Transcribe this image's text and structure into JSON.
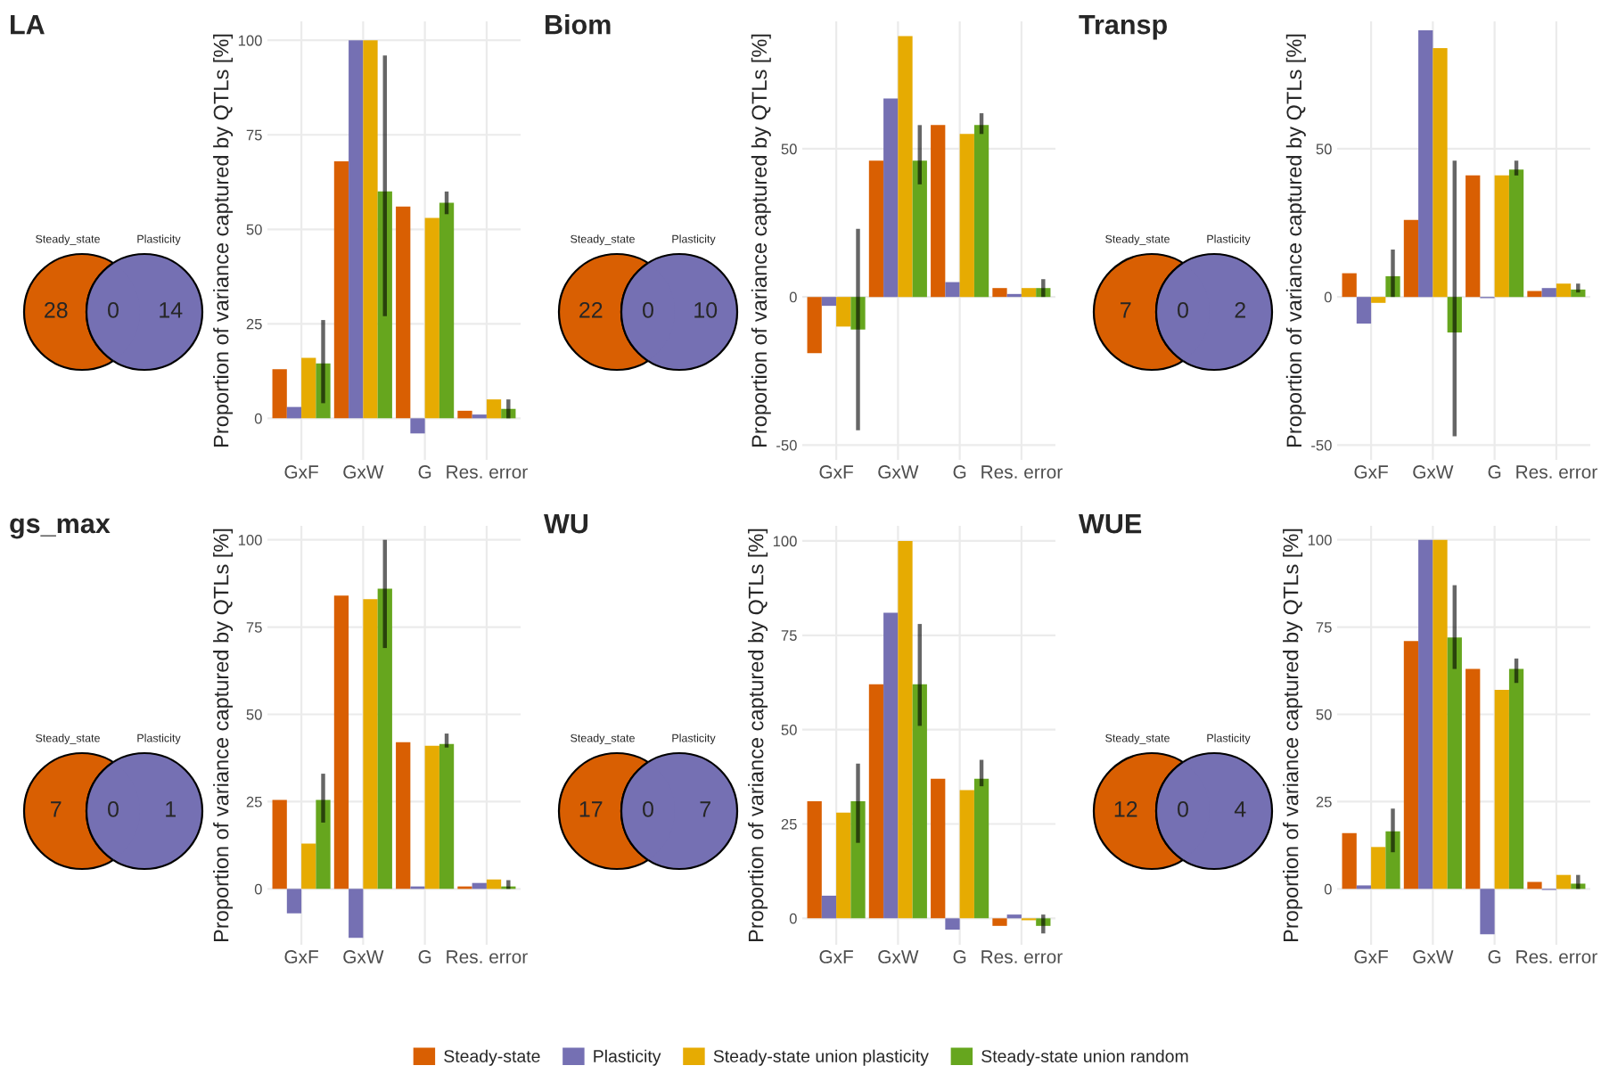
{
  "chart_data": [
    {
      "type": "other",
      "title": "LA",
      "categories": [
        "Steady_state",
        null,
        "Plasticity"
      ],
      "values": [
        28,
        0,
        14
      ],
      "data_labels": true,
      "colors": [
        "#d95f02",
        "#7570b3",
        "#7570b3"
      ]
    },
    {
      "type": "bar",
      "ylabel": "Proportion of variance captured by QTLs [%]",
      "categories": [
        "GxF",
        "GxW",
        "G",
        "Res. error"
      ],
      "ylim": [
        -11,
        105
      ],
      "yticks": [
        0,
        25,
        50,
        75,
        100
      ],
      "grid": true,
      "series": [
        {
          "color": "#d95f02",
          "values": [
            13,
            68,
            56,
            2
          ]
        },
        {
          "color": "#7570b3",
          "values": [
            3,
            100,
            -4,
            1
          ]
        },
        {
          "color": "#e6ab02",
          "values": [
            16,
            100,
            53,
            5
          ]
        },
        {
          "color": "#66a61e",
          "values": [
            14.5,
            60,
            57,
            2.5
          ],
          "errors": [
            [
              4,
              26
            ],
            [
              27,
              96
            ],
            [
              54,
              60
            ],
            [
              0,
              5
            ]
          ]
        }
      ]
    },
    {
      "type": "other",
      "title": "Biom",
      "categories": [
        "Steady_state",
        null,
        "Plasticity"
      ],
      "values": [
        22,
        0,
        10
      ],
      "data_labels": true,
      "colors": [
        "#d95f02",
        "#7570b3",
        "#7570b3"
      ]
    },
    {
      "type": "bar",
      "ylabel": "Proportion of variance captured by QTLs [%]",
      "categories": [
        "GxF",
        "GxW",
        "G",
        "Res. error"
      ],
      "ylim": [
        -55,
        93
      ],
      "yticks": [
        -50,
        0,
        50
      ],
      "grid": true,
      "series": [
        {
          "color": "#d95f02",
          "values": [
            -19,
            46,
            58,
            3
          ]
        },
        {
          "color": "#7570b3",
          "values": [
            -3,
            67,
            5,
            1
          ]
        },
        {
          "color": "#e6ab02",
          "values": [
            -10,
            88,
            55,
            3
          ]
        },
        {
          "color": "#66a61e",
          "values": [
            -11,
            46,
            58,
            3
          ],
          "errors": [
            [
              -45,
              23
            ],
            [
              38,
              58
            ],
            [
              55,
              62
            ],
            [
              0,
              6
            ]
          ]
        }
      ]
    },
    {
      "type": "other",
      "title": "Transp",
      "categories": [
        "Steady_state",
        null,
        "Plasticity"
      ],
      "values": [
        7,
        0,
        2
      ],
      "data_labels": true,
      "colors": [
        "#d95f02",
        "#7570b3",
        "#7570b3"
      ]
    },
    {
      "type": "bar",
      "ylabel": "Proportion of variance captured by QTLs [%]",
      "categories": [
        "GxF",
        "GxW",
        "G",
        "Res. error"
      ],
      "ylim": [
        -55,
        93
      ],
      "yticks": [
        -50,
        0,
        50
      ],
      "grid": true,
      "series": [
        {
          "color": "#d95f02",
          "values": [
            8,
            26,
            41,
            2
          ]
        },
        {
          "color": "#7570b3",
          "values": [
            -9,
            90,
            -0.4,
            3
          ]
        },
        {
          "color": "#e6ab02",
          "values": [
            -2,
            84,
            41,
            4.5
          ]
        },
        {
          "color": "#66a61e",
          "values": [
            7,
            -12,
            43,
            2.5
          ],
          "errors": [
            [
              0,
              16
            ],
            [
              -47,
              46
            ],
            [
              41,
              46
            ],
            [
              1.5,
              4.5
            ]
          ]
        }
      ]
    },
    {
      "type": "other",
      "title": "gs_max",
      "categories": [
        "Steady_state",
        null,
        "Plasticity"
      ],
      "values": [
        7,
        0,
        1
      ],
      "data_labels": true,
      "colors": [
        "#d95f02",
        "#7570b3",
        "#7570b3"
      ]
    },
    {
      "type": "bar",
      "ylabel": "Proportion of variance captured by QTLs [%]",
      "categories": [
        "GxF",
        "GxW",
        "G",
        "Res. error"
      ],
      "ylim": [
        -16,
        104
      ],
      "yticks": [
        0,
        25,
        50,
        75,
        100
      ],
      "grid": true,
      "series": [
        {
          "color": "#d95f02",
          "values": [
            25.5,
            84,
            42,
            0.7
          ]
        },
        {
          "color": "#7570b3",
          "values": [
            -7,
            -14,
            0.7,
            1.7
          ]
        },
        {
          "color": "#e6ab02",
          "values": [
            13,
            83,
            41,
            2.7
          ]
        },
        {
          "color": "#66a61e",
          "values": [
            25.5,
            86,
            41.5,
            0.7
          ],
          "errors": [
            [
              19,
              33
            ],
            [
              69,
              100
            ],
            [
              40.5,
              44.5
            ],
            [
              0,
              2.5
            ]
          ]
        }
      ]
    },
    {
      "type": "other",
      "title": "WU",
      "categories": [
        "Steady_state",
        null,
        "Plasticity"
      ],
      "values": [
        17,
        0,
        7
      ],
      "data_labels": true,
      "colors": [
        "#d95f02",
        "#7570b3",
        "#7570b3"
      ]
    },
    {
      "type": "bar",
      "ylabel": "Proportion of variance captured by QTLs [%]",
      "categories": [
        "GxF",
        "GxW",
        "G",
        "Res. error"
      ],
      "ylim": [
        -7,
        104
      ],
      "yticks": [
        0,
        25,
        50,
        75,
        100
      ],
      "grid": true,
      "series": [
        {
          "color": "#d95f02",
          "values": [
            31,
            62,
            37,
            -2
          ]
        },
        {
          "color": "#7570b3",
          "values": [
            6,
            81,
            -3,
            1
          ]
        },
        {
          "color": "#e6ab02",
          "values": [
            28,
            100,
            34,
            -0.5
          ]
        },
        {
          "color": "#66a61e",
          "values": [
            31,
            62,
            37,
            -2
          ],
          "errors": [
            [
              20,
              41
            ],
            [
              51,
              78
            ],
            [
              35,
              42
            ],
            [
              -4,
              1
            ]
          ]
        }
      ]
    },
    {
      "type": "other",
      "title": "WUE",
      "categories": [
        "Steady_state",
        null,
        "Plasticity"
      ],
      "values": [
        12,
        0,
        4
      ],
      "data_labels": true,
      "colors": [
        "#d95f02",
        "#7570b3",
        "#7570b3"
      ]
    },
    {
      "type": "bar",
      "ylabel": "Proportion of variance captured by QTLs [%]",
      "categories": [
        "GxF",
        "GxW",
        "G",
        "Res. error"
      ],
      "ylim": [
        -16,
        104
      ],
      "yticks": [
        0,
        25,
        50,
        75,
        100
      ],
      "grid": true,
      "legend": "bottom",
      "series": [
        {
          "name": "Steady-state",
          "color": "#d95f02",
          "values": [
            16,
            71,
            63,
            2
          ]
        },
        {
          "name": "Plasticity",
          "color": "#7570b3",
          "values": [
            1,
            100,
            -13,
            -0.3
          ]
        },
        {
          "name": "Steady-state union plasticity",
          "color": "#e6ab02",
          "values": [
            12,
            100,
            57,
            4
          ]
        },
        {
          "name": "Steady-state union random",
          "color": "#66a61e",
          "values": [
            16.5,
            72,
            63,
            1.5
          ],
          "errors": [
            [
              10.5,
              23
            ],
            [
              63,
              87
            ],
            [
              59,
              66
            ],
            [
              0,
              4
            ]
          ]
        }
      ]
    }
  ]
}
